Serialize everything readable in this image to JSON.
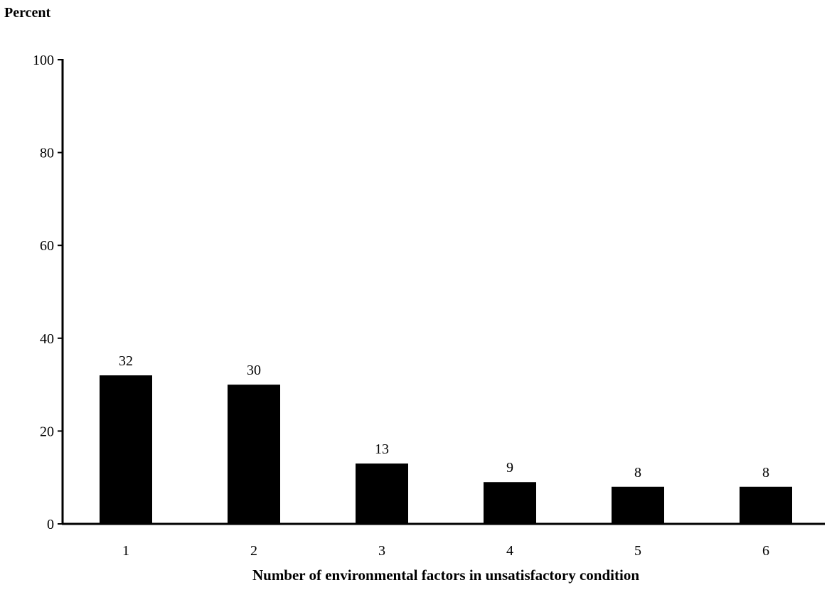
{
  "chart_data": {
    "type": "bar",
    "title": "",
    "xlabel": "Number of environmental factors in unsatisfactory condition",
    "ylabel": "Percent",
    "categories": [
      "1",
      "2",
      "3",
      "4",
      "5",
      "6"
    ],
    "values": [
      32,
      30,
      13,
      9,
      8,
      8
    ],
    "data_labels": [
      "32",
      "30",
      "13",
      "9",
      "8",
      "8"
    ],
    "ylim": [
      0,
      100
    ],
    "yticks": [
      0,
      20,
      40,
      60,
      80,
      100
    ],
    "ytick_labels": [
      "0",
      "20",
      "40",
      "60",
      "80",
      "100"
    ],
    "grid": false,
    "legend": "none",
    "bar_color": "#000000"
  }
}
